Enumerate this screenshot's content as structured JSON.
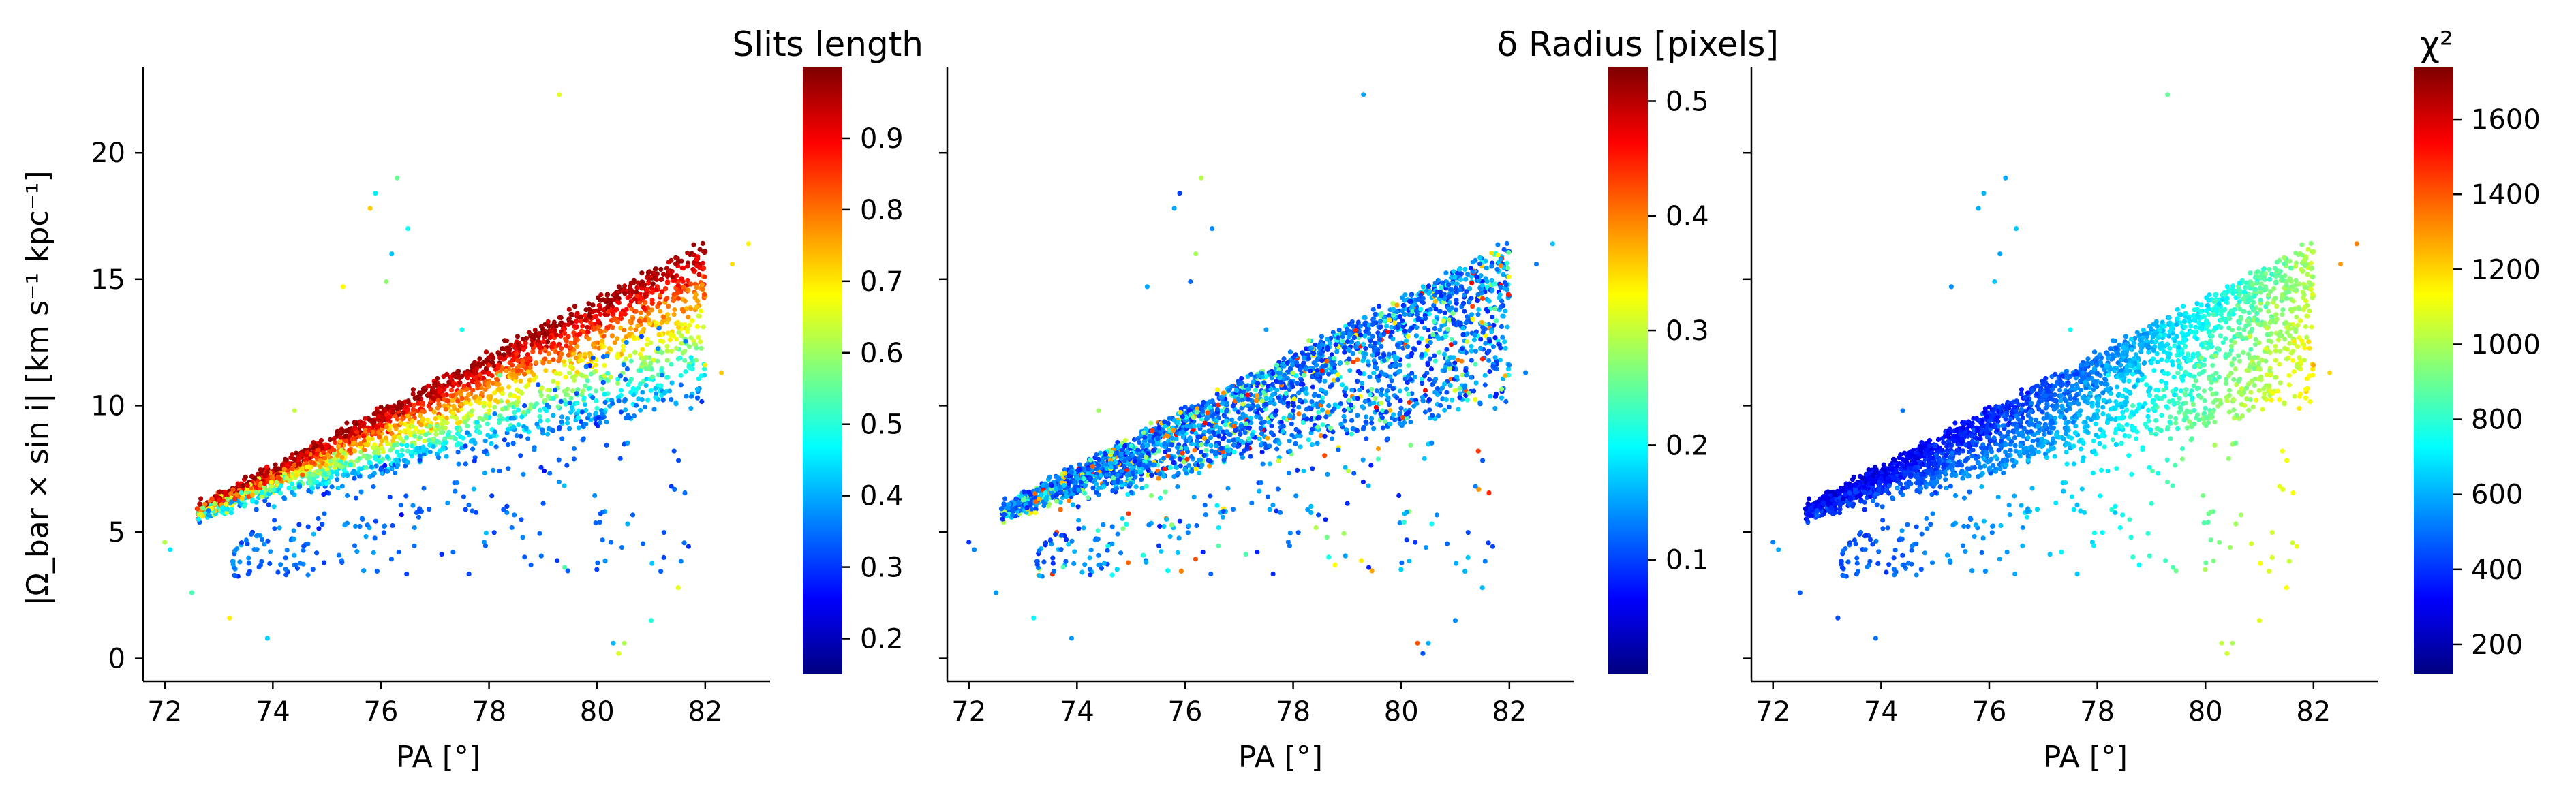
{
  "chart_data": [
    {
      "type": "scatter",
      "xlabel": "PA [°]",
      "ylabel": "|Ω_bar × sin i|  [km s⁻¹ kpc⁻¹]",
      "xlim": [
        71.6,
        83.2
      ],
      "ylim": [
        -0.9,
        23.4
      ],
      "xticks": [
        72,
        74,
        76,
        78,
        80,
        82
      ],
      "yticks": [
        0,
        5,
        10,
        15,
        20
      ],
      "colorbar": {
        "title": "Slits length",
        "colormap": "jet",
        "range": [
          0.15,
          1.0
        ],
        "ticks": [
          0.2,
          0.3,
          0.4,
          0.5,
          0.6,
          0.7,
          0.8,
          0.9
        ]
      },
      "summary": "Dense band of points rising from (72, 4.5) to (82.5, 16.5); upper edge of band colored dark red/orange (long slits ~0.9), lower spread green/cyan (~0.5–0.6); sparse outliers near PA 76 (y 15–19) and one at (79.3, 22.3)."
    },
    {
      "type": "scatter",
      "xlabel": "PA [°]",
      "ylabel": "",
      "xlim": [
        71.6,
        83.2
      ],
      "ylim": [
        -0.9,
        23.4
      ],
      "xticks": [
        72,
        74,
        76,
        78,
        80,
        82
      ],
      "yticks": [
        0,
        5,
        10,
        15,
        20
      ],
      "colorbar": {
        "title": "δ Radius [pixels]",
        "colormap": "jet",
        "range": [
          0.0,
          0.53
        ],
        "ticks": [
          0.1,
          0.2,
          0.3,
          0.4,
          0.5
        ]
      },
      "summary": "Same distribution; predominantly blue (δ ~0.05–0.15) with scattered cyan/green/yellow points along the band."
    },
    {
      "type": "scatter",
      "xlabel": "PA [°]",
      "ylabel": "",
      "xlim": [
        71.6,
        83.2
      ],
      "ylim": [
        -0.9,
        23.4
      ],
      "xticks": [
        72,
        74,
        76,
        78,
        80,
        82
      ],
      "yticks": [
        0,
        5,
        10,
        15,
        20
      ],
      "colorbar": {
        "title": "χ²",
        "colormap": "jet",
        "range": [
          120,
          1740
        ],
        "ticks": [
          200,
          400,
          600,
          800,
          1000,
          1200,
          1400,
          1600
        ]
      },
      "summary": "Same distribution; dark blue at low PA rising to cyan/green (χ² ~700–900) at high PA end of the band."
    }
  ],
  "colors": {
    "jet": [
      "#00007f",
      "#0000ff",
      "#007fff",
      "#00ffff",
      "#7fff7f",
      "#ffff00",
      "#ff7f00",
      "#ff0000",
      "#7f0000"
    ]
  }
}
